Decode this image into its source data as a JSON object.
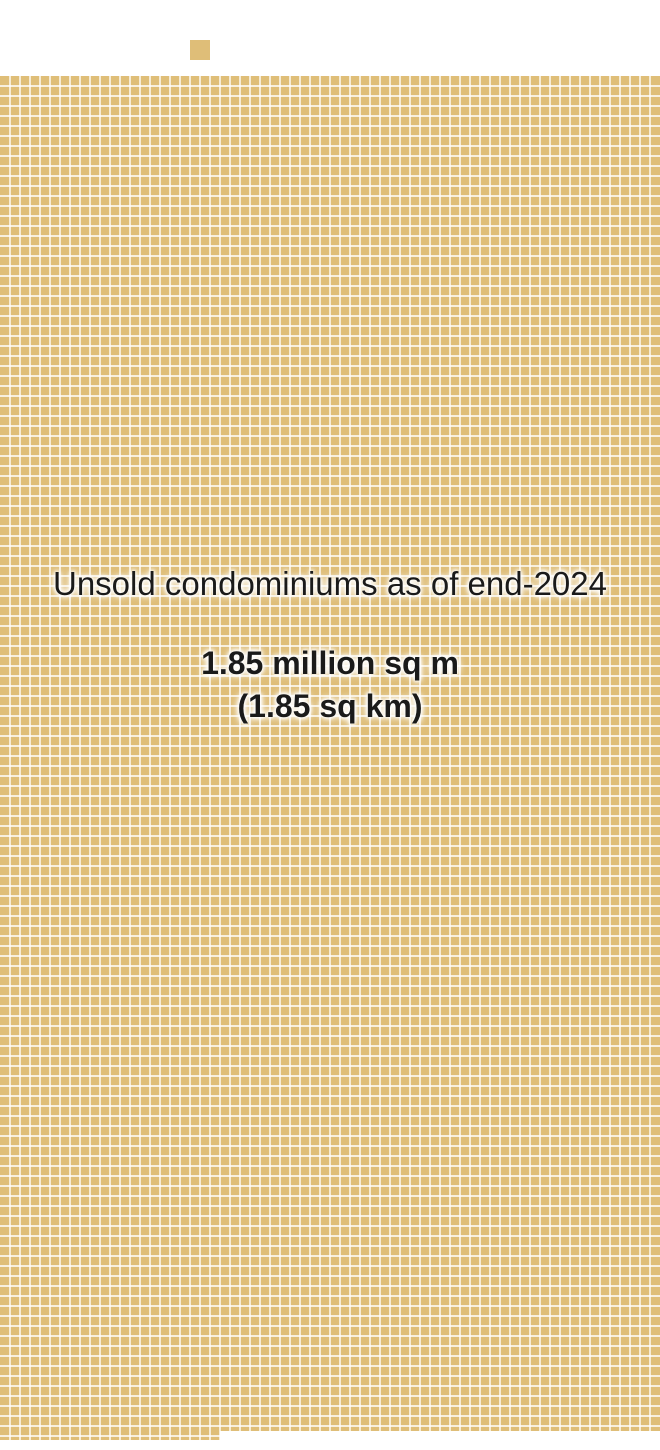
{
  "chart_data": {
    "type": "waffle",
    "unit_color": "#dfbe78",
    "background_color": "#ffffff",
    "series": [
      {
        "name": "Unsold condominiums as of end-2024",
        "value": 1.85,
        "unit": "million sq m",
        "value_km2": 1.85
      }
    ],
    "legend_unit_square": true,
    "title": "Unsold condominiums as of end-2024",
    "value_label": "1.85 million sq m",
    "value_label_km": "(1.85 sq km)"
  }
}
